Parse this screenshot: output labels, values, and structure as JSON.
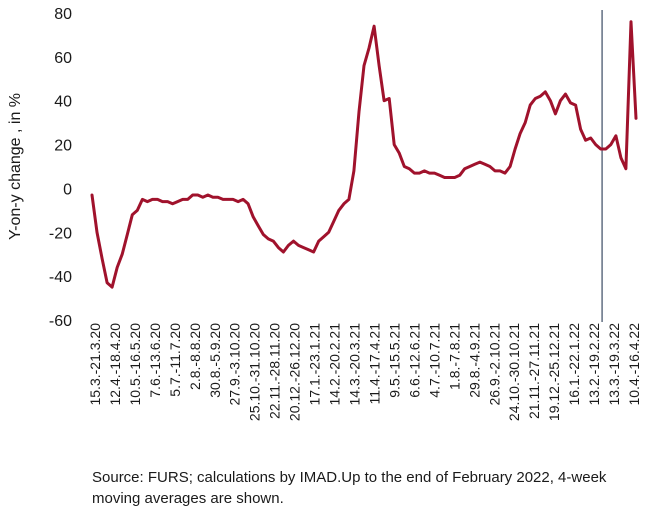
{
  "chart_data": {
    "type": "line",
    "ylabel": "Y-on-y change , in %",
    "ylim": [
      -60,
      80
    ],
    "yticks": [
      -60,
      -40,
      -20,
      0,
      20,
      40,
      60,
      80
    ],
    "grid": false,
    "legend": "none",
    "series_color": "#a0122c",
    "marker_line_color": "#3b4a63",
    "marker_line_after_label": "13.2.-19.2.22",
    "tick_labels": [
      "15.3.-21.3.20",
      "12.4.-18.4.20",
      "10.5.-16.5.20",
      "7.6.-13.6.20",
      "5.7.-11.7.20",
      "2.8.-8.8.20",
      "30.8.-5.9.20",
      "27.9.-3.10.20",
      "25.10.-31.10.20",
      "22.11.-28.11.20",
      "20.12.-26.12.20",
      "17.1.-23.1.21",
      "14.2.-20.2.21",
      "14.3.-20.3.21",
      "11.4.-17.4.21",
      "9.5.-15.5.21",
      "6.6.-12.6.21",
      "4.7.-10.7.21",
      "1.8.-7.8.21",
      "29.8.-4.9.21",
      "26.9.-2.10.21",
      "24.10.-30.10.21",
      "21.11.-27.11.21",
      "19.12.-25.12.21",
      "16.1.-22.1.22",
      "13.2.-19.2.22",
      "13.3.-19.3.22",
      "10.4.-16.4.22"
    ],
    "values": [
      -3,
      -20,
      -32,
      -43,
      -45,
      -36,
      -30,
      -21,
      -12,
      -10,
      -5,
      -6,
      -5,
      -5,
      -6,
      -6,
      -7,
      -6,
      -5,
      -5,
      -3,
      -3,
      -4,
      -3,
      -4,
      -4,
      -5,
      -5,
      -5,
      -6,
      -5,
      -7,
      -13,
      -17,
      -21,
      -23,
      -24,
      -27,
      -29,
      -26,
      -24,
      -26,
      -27,
      -28,
      -29,
      -24,
      -22,
      -20,
      -15,
      -10,
      -7,
      -5,
      8,
      35,
      56,
      64,
      74,
      56,
      40,
      41,
      20,
      16,
      10,
      9,
      7,
      7,
      8,
      7,
      7,
      6,
      5,
      5,
      5,
      6,
      9,
      10,
      11,
      12,
      11,
      10,
      8,
      8,
      7,
      10,
      18,
      25,
      30,
      38,
      41,
      42,
      44,
      40,
      34,
      40,
      43,
      39,
      38,
      27,
      22,
      23,
      20,
      18,
      18,
      20,
      24,
      14,
      9,
      76,
      32
    ],
    "footnote": "Source: FURS; calculations by IMAD.Up to the end of February 2022, 4-week moving averages are shown."
  }
}
